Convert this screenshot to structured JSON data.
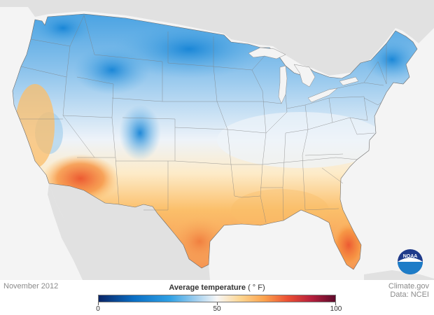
{
  "map": {
    "date_label": "November 2012",
    "credit_line1": "Climate.gov",
    "credit_line2": "Data: NCEI",
    "logo_text": "NOAA",
    "colors": {
      "background": "#f4f4f4",
      "land_other": "#e1e1e1",
      "water": "#f4f4f4",
      "cold": "#1e8fd8",
      "mild": "#f3f6fa",
      "warm": "#fdc36c",
      "hot": "#ee5a34"
    }
  },
  "legend": {
    "title": "Average temperature",
    "unit": "( ° F)",
    "min": 0,
    "mid": 50,
    "max": 100,
    "tick_labels": [
      "0",
      "50",
      "100"
    ],
    "gradient_stops": [
      {
        "value": 0,
        "color": "#0a2566"
      },
      {
        "value": 15,
        "color": "#0a6ec4"
      },
      {
        "value": 30,
        "color": "#2fa0e4"
      },
      {
        "value": 42,
        "color": "#a9d2ef"
      },
      {
        "value": 50,
        "color": "#f7f7f7"
      },
      {
        "value": 60,
        "color": "#fdd590"
      },
      {
        "value": 70,
        "color": "#fba24d"
      },
      {
        "value": 80,
        "color": "#ea4f34"
      },
      {
        "value": 90,
        "color": "#b51f3c"
      },
      {
        "value": 100,
        "color": "#5e0b2c"
      }
    ]
  }
}
